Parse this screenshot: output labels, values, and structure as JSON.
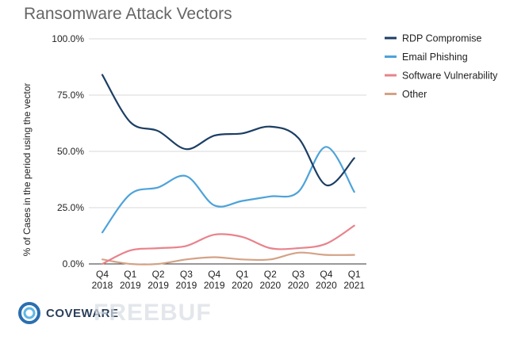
{
  "chart_data": {
    "type": "line",
    "title": "Ransomware Attack Vectors",
    "xlabel": "",
    "ylabel": "% of Cases in the period using the vector",
    "ylim": [
      0,
      100
    ],
    "yticks": [
      "100.0%",
      "75.0%",
      "50.0%",
      "25.0%",
      "0.0%"
    ],
    "categories": [
      [
        "Q4",
        "2018"
      ],
      [
        "Q1",
        "2019"
      ],
      [
        "Q2",
        "2019"
      ],
      [
        "Q3",
        "2019"
      ],
      [
        "Q4",
        "2019"
      ],
      [
        "Q1",
        "2020"
      ],
      [
        "Q2",
        "2020"
      ],
      [
        "Q3",
        "2020"
      ],
      [
        "Q4",
        "2020"
      ],
      [
        "Q1",
        "2021"
      ]
    ],
    "grid": true,
    "legend": "right",
    "series": [
      {
        "name": "RDP Compromise",
        "color": "#1c3e63",
        "values": [
          84,
          63,
          59,
          51,
          57,
          58,
          61,
          56,
          35,
          47
        ]
      },
      {
        "name": "Email Phishing",
        "color": "#4da3d9",
        "values": [
          14,
          31,
          34,
          39,
          26,
          28,
          30,
          32,
          52,
          32
        ]
      },
      {
        "name": "Software Vulnerability",
        "color": "#e8838c",
        "values": [
          0,
          6,
          7,
          8,
          13,
          12,
          7,
          7,
          9,
          17
        ]
      },
      {
        "name": "Other",
        "color": "#d4a286",
        "values": [
          2,
          0,
          0,
          2,
          3,
          2,
          2,
          5,
          4,
          4
        ]
      }
    ]
  },
  "branding": {
    "logo_text": "COVEWARE",
    "logo_icon": "coveware-ring-icon",
    "watermark_text": "FREEBUF"
  }
}
